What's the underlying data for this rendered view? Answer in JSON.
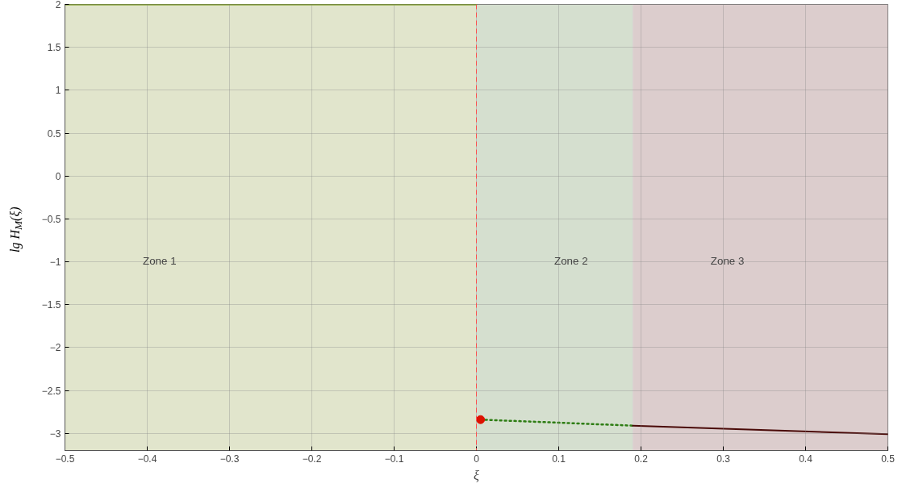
{
  "chart_data": {
    "type": "line",
    "xlabel": "ξ",
    "ylabel": "lg H$_{M}$(ξ)",
    "xlim": [
      -0.5,
      0.5
    ],
    "ylim": [
      -3.2,
      2
    ],
    "xticks": [
      -0.5,
      -0.4,
      -0.3,
      -0.2,
      -0.1,
      0,
      0.1,
      0.2,
      0.3,
      0.4,
      0.5
    ],
    "yticks": [
      -3,
      -2.5,
      -2,
      -1.5,
      -1,
      -0.5,
      0,
      0.5,
      1,
      1.5,
      2
    ],
    "grid": true,
    "bands": [
      {
        "axis": "x",
        "from": -0.5,
        "to": 0,
        "color": "#e1e5cc",
        "label": "Zone 1"
      },
      {
        "axis": "x",
        "from": 0,
        "to": 0.19,
        "color": "#d5dfcf",
        "label": "Zone 2"
      },
      {
        "axis": "x",
        "from": 0.19,
        "to": 0.5,
        "color": "#dccdcd",
        "label": "Zone 3"
      }
    ],
    "ref_lines": [
      {
        "axis": "x",
        "value": 0,
        "color": "#ff5050",
        "line_style": "dashed"
      }
    ],
    "series": [
      {
        "color": "#6b9000",
        "x": [
          -0.5,
          0
        ],
        "values": [
          2,
          2
        ],
        "line_style": "solid"
      },
      {
        "color": "#2e7d14",
        "x": [
          0.005,
          0.19
        ],
        "values": [
          -2.84,
          -2.91
        ],
        "line_style": "dotted"
      },
      {
        "color": "#4a0a08",
        "x": [
          0.19,
          0.5
        ],
        "values": [
          -2.91,
          -3.01
        ],
        "line_style": "solid"
      },
      {
        "type": "scatter",
        "color": "#dd1100",
        "x": [
          0.005
        ],
        "values": [
          -2.84
        ],
        "marker": "circle"
      }
    ]
  }
}
